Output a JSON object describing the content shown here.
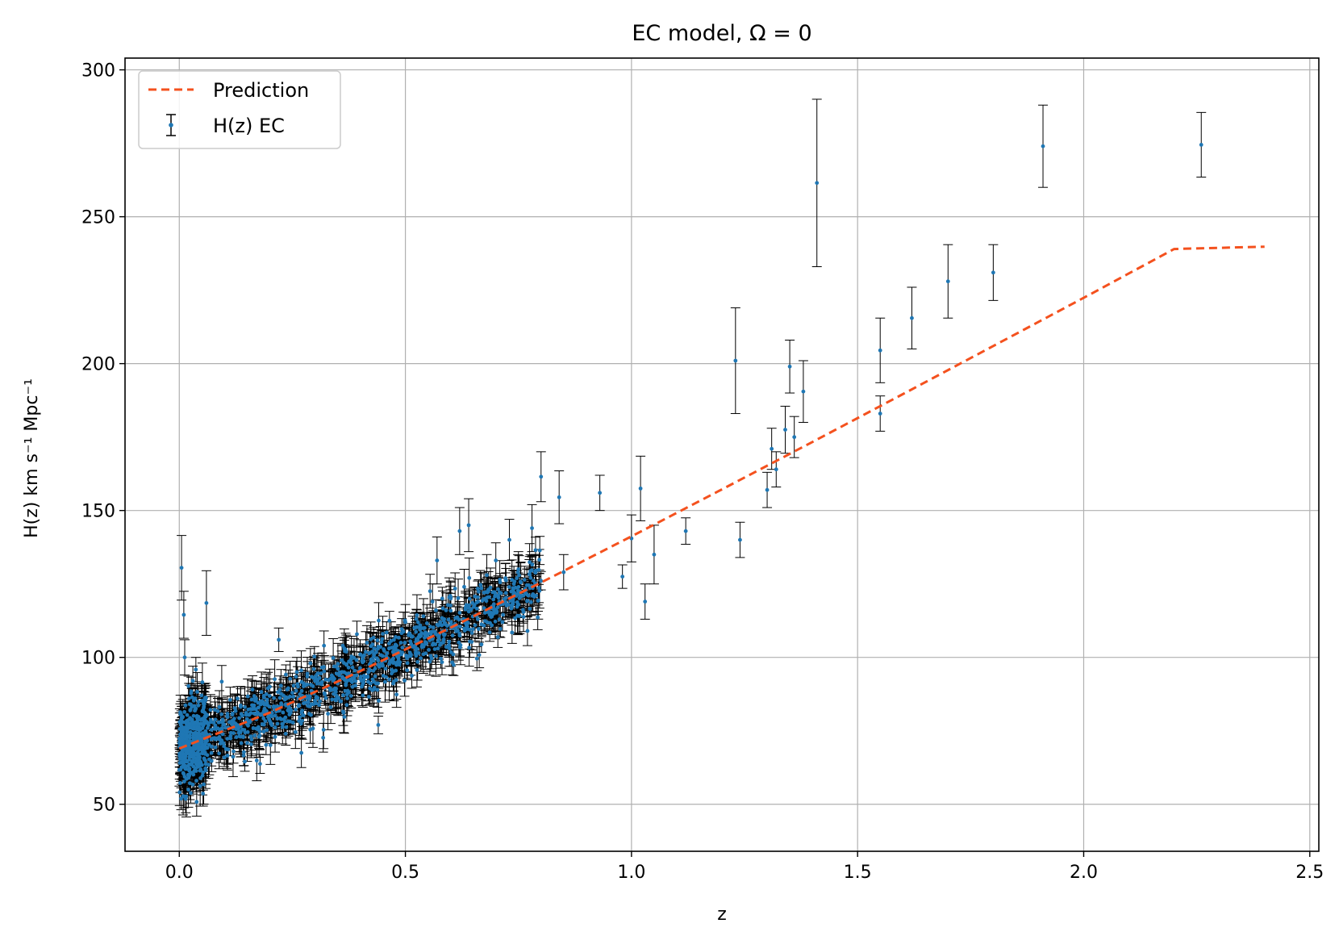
{
  "chart_data": {
    "type": "scatter",
    "title": "EC model, Ω = 0",
    "xlabel": "z",
    "ylabel": "H(z) km s⁻¹ Mpc⁻¹",
    "xlim": [
      -0.12,
      2.52
    ],
    "ylim": [
      34,
      304
    ],
    "x_ticks": [
      0.0,
      0.5,
      1.0,
      1.5,
      2.0,
      2.5
    ],
    "x_tick_labels": [
      "0.0",
      "0.5",
      "1.0",
      "1.5",
      "2.0",
      "2.5"
    ],
    "y_ticks": [
      50,
      100,
      150,
      200,
      250,
      300
    ],
    "y_tick_labels": [
      "50",
      "100",
      "150",
      "200",
      "250",
      "300"
    ],
    "grid": true,
    "legend_position": "top-left",
    "colors": {
      "points": "#1f77b4",
      "errorbars": "#000000",
      "prediction": "#f4511e",
      "grid": "#b0b0b0"
    },
    "series": [
      {
        "name": "Prediction",
        "style": "dashed-line",
        "x": [
          0.0,
          0.2,
          0.4,
          0.6,
          0.8,
          1.0,
          1.2,
          1.4,
          1.6,
          1.8,
          2.0,
          2.2,
          2.4
        ],
        "y": [
          69.0,
          81.2,
          95.3,
          110.1,
          125.5,
          141.2,
          157.2,
          173.3,
          189.6,
          206.0,
          222.4,
          239.0,
          239.8
        ]
      },
      {
        "name": "H(z) EC",
        "style": "points-with-errorbars",
        "x": [
          0.005,
          0.01,
          0.012,
          0.015,
          0.02,
          0.025,
          0.03,
          0.035,
          0.04,
          0.06,
          0.07,
          0.09,
          0.12,
          0.15,
          0.17,
          0.18,
          0.2,
          0.22,
          0.24,
          0.26,
          0.27,
          0.29,
          0.3,
          0.32,
          0.34,
          0.36,
          0.38,
          0.4,
          0.42,
          0.44,
          0.45,
          0.47,
          0.49,
          0.5,
          0.52,
          0.54,
          0.56,
          0.57,
          0.59,
          0.6,
          0.62,
          0.63,
          0.64,
          0.66,
          0.68,
          0.7,
          0.71,
          0.73,
          0.74,
          0.75,
          0.77,
          0.78,
          0.8,
          0.84,
          0.85,
          0.93,
          0.98,
          1.0,
          1.02,
          1.03,
          1.05,
          1.12,
          1.23,
          1.24,
          1.3,
          1.31,
          1.32,
          1.34,
          1.35,
          1.36,
          1.38,
          1.41,
          1.55,
          1.55,
          1.62,
          1.7,
          1.8,
          1.91,
          2.26
        ],
        "y": [
          130.5,
          114.5,
          100.0,
          62.0,
          55.0,
          76.0,
          92.0,
          86.0,
          74.0,
          118.5,
          78.0,
          72.0,
          68.0,
          79.0,
          86.0,
          84.0,
          90.0,
          106.0,
          82.0,
          95.0,
          67.5,
          98.0,
          92.0,
          104.0,
          89.0,
          99.0,
          94.0,
          101.0,
          96.0,
          77.0,
          108.0,
          99.0,
          105.0,
          112.0,
          110.0,
          114.0,
          119.0,
          133.0,
          116.0,
          120.0,
          143.0,
          124.0,
          145.0,
          113.0,
          128.0,
          133.0,
          118.0,
          140.0,
          125.0,
          130.0,
          109.0,
          144.0,
          161.5,
          154.5,
          129.0,
          156.0,
          127.5,
          140.5,
          157.5,
          119.0,
          135.0,
          143.0,
          201.0,
          140.0,
          157.0,
          171.0,
          164.0,
          177.5,
          199.0,
          175.0,
          190.5,
          261.5,
          204.5,
          183.0,
          215.5,
          228.0,
          231.0,
          274.0,
          274.5
        ],
        "yerr": [
          11.0,
          8.0,
          6.0,
          7.0,
          6.0,
          6.0,
          5.0,
          5.0,
          5.0,
          11.0,
          5.0,
          5.0,
          4.0,
          5.0,
          6.0,
          5.0,
          6.0,
          4.0,
          5.0,
          5.0,
          5.0,
          5.0,
          5.0,
          5.0,
          5.0,
          5.0,
          5.0,
          5.0,
          5.0,
          3.0,
          6.0,
          5.0,
          6.0,
          6.0,
          5.0,
          6.0,
          6.0,
          8.0,
          6.0,
          6.0,
          8.0,
          6.0,
          9.0,
          5.0,
          7.0,
          6.0,
          6.0,
          7.0,
          6.0,
          6.0,
          5.0,
          8.0,
          8.5,
          9.0,
          6.0,
          6.0,
          4.0,
          8.0,
          11.0,
          6.0,
          10.0,
          4.5,
          18.0,
          6.0,
          6.0,
          7.0,
          6.0,
          8.0,
          9.0,
          7.0,
          10.5,
          28.5,
          11.0,
          6.0,
          10.5,
          12.5,
          9.5,
          14.0,
          11.0
        ]
      }
    ],
    "dense_cloud": {
      "description_of_data": "many additional H(z) EC points along the prediction between z = 0 and z = 0.8",
      "z_range": [
        0.0,
        0.8
      ],
      "count": 1400
    }
  }
}
